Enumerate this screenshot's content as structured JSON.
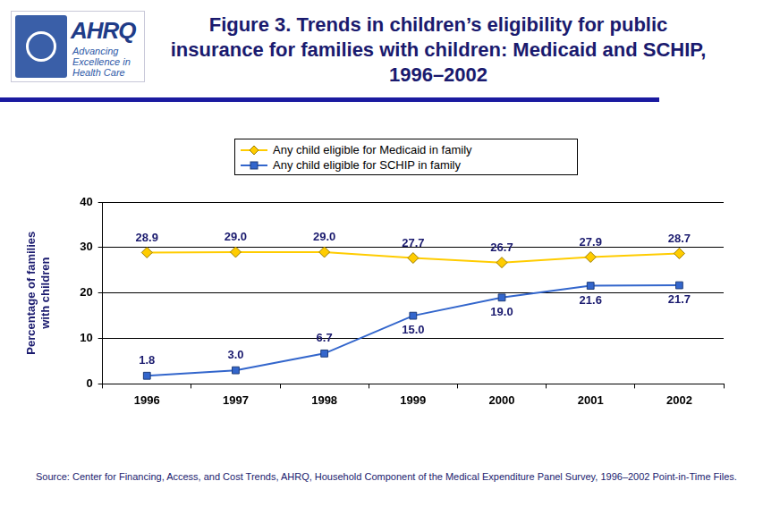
{
  "logo": {
    "text": "AHRQ",
    "tagline": "Advancing Excellence in Health Care"
  },
  "chart_data": {
    "type": "line",
    "title": "Figure 3. Trends in children’s eligibility for public insurance for families with children: Medicaid and SCHIP, 1996–2002",
    "y_label": "Percentage of families with children",
    "categories": [
      "1996",
      "1997",
      "1998",
      "1999",
      "2000",
      "2001",
      "2002"
    ],
    "series": [
      {
        "name": "Any child eligible for Medicaid in family",
        "color": "#FFCC00",
        "marker": "diamond",
        "values": [
          28.9,
          29.0,
          29.0,
          27.7,
          26.7,
          27.9,
          28.7
        ],
        "value_labels": [
          "28.9",
          "29.0",
          "29.0",
          "27.7",
          "26.7",
          "27.9",
          "28.7"
        ]
      },
      {
        "name": "Any child eligible for SCHIP in family",
        "color": "#3366CC",
        "marker": "square",
        "values": [
          1.8,
          3.0,
          6.7,
          15.0,
          19.0,
          21.6,
          21.7
        ],
        "value_labels": [
          "1.8",
          "3.0",
          "6.7",
          "15.0",
          "19.0",
          "21.6",
          "21.7"
        ]
      }
    ],
    "ylim": [
      0,
      40
    ],
    "yticks": [
      0,
      10,
      20,
      30,
      40
    ],
    "grid": true,
    "legend": "top",
    "data_labels": true,
    "source": "Source: Center for Financing, Access, and Cost Trends, AHRQ, Household Component of the Medical Expenditure Panel Survey, 1996–2002 Point-in-Time Files."
  }
}
